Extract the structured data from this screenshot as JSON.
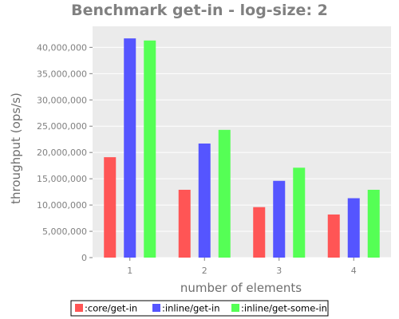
{
  "chart_data": {
    "type": "bar",
    "title": "Benchmark get-in - log-size: 2",
    "xlabel": "number of elements",
    "ylabel": "throughput (ops/s)",
    "categories": [
      "1",
      "2",
      "3",
      "4"
    ],
    "ylim": [
      0,
      44000000
    ],
    "yticks": [
      0,
      5000000,
      10000000,
      15000000,
      20000000,
      25000000,
      30000000,
      35000000,
      40000000
    ],
    "ytick_labels": [
      "0",
      "5,000,000",
      "10,000,000",
      "15,000,000",
      "20,000,000",
      "25,000,000",
      "30,000,000",
      "35,000,000",
      "40,000,000"
    ],
    "grid": true,
    "legend_position": "bottom",
    "series": [
      {
        "name": ":core/get-in",
        "color": "#ff5555",
        "values": [
          19100000,
          12900000,
          9600000,
          8200000
        ]
      },
      {
        "name": ":inline/get-in",
        "color": "#5555ff",
        "values": [
          41700000,
          21700000,
          14600000,
          11300000
        ]
      },
      {
        "name": ":inline/get-some-in",
        "color": "#55ff55",
        "values": [
          41300000,
          24300000,
          17100000,
          12900000
        ]
      }
    ]
  }
}
